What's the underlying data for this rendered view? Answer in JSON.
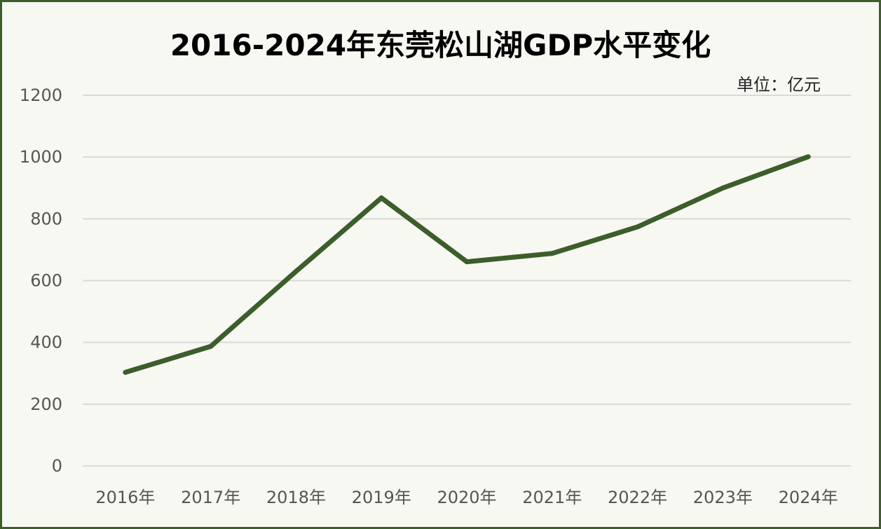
{
  "chart_data": {
    "type": "line",
    "title": "2016-2024年东莞松山湖GDP水平变化",
    "unit_label": "单位：亿元",
    "xlabel": "",
    "ylabel": "",
    "categories": [
      "2016年",
      "2017年",
      "2018年",
      "2019年",
      "2020年",
      "2021年",
      "2022年",
      "2023年",
      "2024年"
    ],
    "series": [
      {
        "values": [
          303,
          387,
          630,
          868,
          661,
          688,
          774,
          900,
          1001
        ]
      }
    ],
    "yticks": [
      "0",
      "200",
      "400",
      "600",
      "800",
      "1000",
      "1200"
    ],
    "ylim": [
      0,
      1200
    ],
    "grid": true,
    "legend": "none",
    "colors": {
      "line": "#3b5e2b",
      "grid": "#d9d9d9",
      "frame": "#3b5e2b",
      "background": "#f8f8f3"
    }
  }
}
